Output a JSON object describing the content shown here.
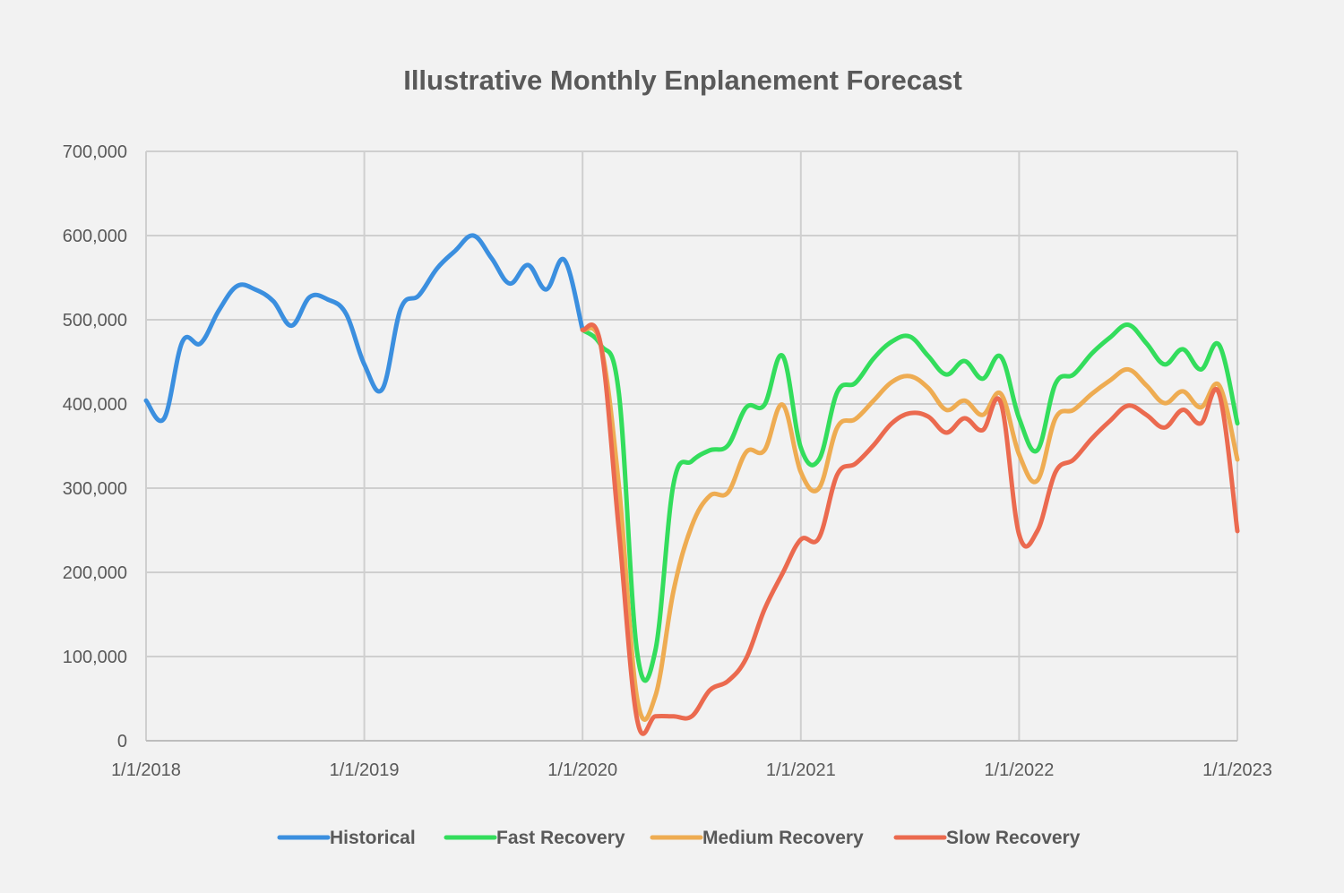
{
  "chart_data": {
    "type": "line",
    "title": "Illustrative Monthly Enplanement Forecast",
    "xlabel": "",
    "ylabel": "",
    "ylim": [
      0,
      700000
    ],
    "yticks": [
      "0",
      "100,000",
      "200,000",
      "300,000",
      "400,000",
      "500,000",
      "600,000",
      "700,000"
    ],
    "xlim": [
      "2018-01",
      "2023-01"
    ],
    "xticks": [
      "1/1/2018",
      "1/1/2019",
      "1/1/2020",
      "1/1/2021",
      "1/1/2022",
      "1/1/2023"
    ],
    "grid": true,
    "legend_position": "bottom",
    "series": [
      {
        "name": "Historical",
        "color": "#3b8fdf",
        "start": "2018-01",
        "values": [
          404000,
          383000,
          474000,
          472000,
          511000,
          540000,
          536000,
          522000,
          493000,
          527000,
          524000,
          507000,
          447000,
          418000,
          513000,
          529000,
          561000,
          582000,
          600000,
          573000,
          543000,
          565000,
          536000,
          571000,
          488000
        ]
      },
      {
        "name": "Fast Recovery",
        "color": "#33dd5c",
        "start": "2020-01",
        "values": [
          488000,
          470000,
          412000,
          105000,
          107000,
          305000,
          332000,
          345000,
          351000,
          396000,
          399000,
          457000,
          348000,
          334000,
          414000,
          425000,
          454000,
          474000,
          480000,
          457000,
          435000,
          451000,
          430000,
          456000,
          383000,
          345000,
          424000,
          435000,
          460000,
          479000,
          494000,
          472000,
          447000,
          465000,
          441000,
          470000,
          377000
        ]
      },
      {
        "name": "Medium Recovery",
        "color": "#eeac52",
        "start": "2020-01",
        "values": [
          488000,
          470000,
          302000,
          50000,
          53000,
          178000,
          255000,
          291000,
          295000,
          343000,
          345000,
          399000,
          319000,
          300000,
          372000,
          382000,
          404000,
          426000,
          433000,
          419000,
          393000,
          404000,
          387000,
          412000,
          340000,
          309000,
          383000,
          393000,
          412000,
          428000,
          441000,
          422000,
          401000,
          415000,
          396000,
          422000,
          334000
        ]
      },
      {
        "name": "Slow Recovery",
        "color": "#eb6a4f",
        "start": "2020-01",
        "values": [
          488000,
          470000,
          249000,
          25000,
          29000,
          29000,
          29000,
          60000,
          71000,
          98000,
          156000,
          199000,
          239000,
          241000,
          316000,
          329000,
          351000,
          377000,
          389000,
          385000,
          366000,
          383000,
          369000,
          401000,
          245000,
          249000,
          319000,
          334000,
          359000,
          380000,
          398000,
          387000,
          372000,
          393000,
          377000,
          412000,
          249000
        ]
      }
    ]
  }
}
